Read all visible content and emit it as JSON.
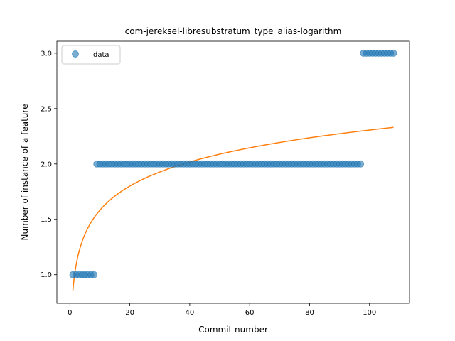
{
  "chart_data": {
    "type": "scatter",
    "title": "com-jereksel-libresubstratum_type_alias-logarithm",
    "xlabel": "Commit number",
    "ylabel": "Number of instance of a feature",
    "xlim": [
      -4.35,
      113.35
    ],
    "ylim": [
      0.7415,
      3.1083
    ],
    "xticks": [
      0,
      20,
      40,
      60,
      80,
      100
    ],
    "yticks": [
      1.0,
      1.5,
      2.0,
      2.5,
      3.0
    ],
    "xtick_labels": [
      "0",
      "20",
      "40",
      "60",
      "80",
      "100"
    ],
    "ytick_labels": [
      "1.0",
      "1.5",
      "2.0",
      "2.5",
      "3.0"
    ],
    "grid": false,
    "legend": {
      "position": "top-left",
      "entries": [
        "data"
      ]
    },
    "series": [
      {
        "name": "data",
        "kind": "points",
        "color": "#1f77b4",
        "segments": [
          {
            "x_start": 1,
            "x_end": 8,
            "y": 1
          },
          {
            "x_start": 9,
            "x_end": 97,
            "y": 2
          },
          {
            "x_start": 98,
            "x_end": 108,
            "y": 3
          }
        ]
      },
      {
        "kind": "fit",
        "color": "#ff7f0e",
        "model": "a + b*ln(x)",
        "a": 0.858,
        "b": 0.3145,
        "x_range": [
          1,
          108
        ]
      }
    ]
  }
}
